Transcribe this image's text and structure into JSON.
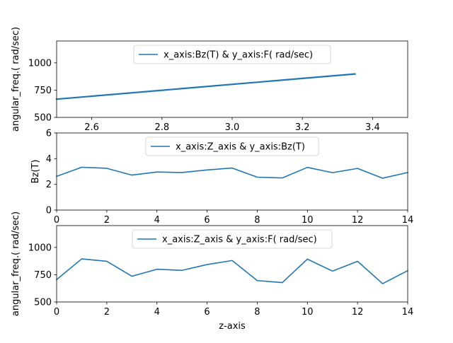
{
  "chart_data": [
    {
      "type": "line",
      "title": "",
      "xlabel": "",
      "ylabel": "angular_freq.( rad/sec)",
      "xlim": [
        2.5,
        3.5
      ],
      "ylim": [
        500,
        1200
      ],
      "xticks": [
        2.6,
        2.8,
        3.0,
        3.2,
        3.4
      ],
      "xtick_labels": [
        "2.6",
        "2.8",
        "3.0",
        "3.2",
        "3.4"
      ],
      "yticks": [
        500,
        750,
        1000
      ],
      "ytick_labels": [
        "500",
        "750",
        "1000"
      ],
      "legend_position": "upper-center",
      "series": [
        {
          "name": "x_axis:Bz(T) & y_axis:F( rad/sec)",
          "color": "#1f77b4",
          "x": [
            2.5,
            3.35
          ],
          "y": [
            667,
            898
          ]
        }
      ]
    },
    {
      "type": "line",
      "title": "",
      "xlabel": "",
      "ylabel": "Bz(T)",
      "xlim": [
        0,
        14
      ],
      "ylim": [
        0,
        6
      ],
      "xticks": [
        0,
        2,
        4,
        6,
        8,
        10,
        12,
        14
      ],
      "xtick_labels": [
        "0",
        "2",
        "4",
        "6",
        "8",
        "10",
        "12",
        "14"
      ],
      "yticks": [
        0,
        2,
        4,
        6
      ],
      "ytick_labels": [
        "0",
        "2",
        "4",
        "6"
      ],
      "legend_position": "upper-center",
      "series": [
        {
          "name": "x_axis:Z_axis & y_axis:Bz(T)",
          "color": "#1f77b4",
          "x": [
            0,
            1,
            2,
            3,
            4,
            5,
            6,
            7,
            8,
            9,
            10,
            11,
            12,
            13,
            14
          ],
          "y": [
            2.62,
            3.33,
            3.25,
            2.72,
            2.96,
            2.92,
            3.12,
            3.27,
            2.56,
            2.5,
            3.32,
            2.91,
            3.24,
            2.48,
            2.92
          ]
        }
      ]
    },
    {
      "type": "line",
      "title": "",
      "xlabel": "z-axis",
      "ylabel": "angular_freq.( rad/sec)",
      "xlim": [
        0,
        14
      ],
      "ylim": [
        500,
        1200
      ],
      "xticks": [
        0,
        2,
        4,
        6,
        8,
        10,
        12,
        14
      ],
      "xtick_labels": [
        "0",
        "2",
        "4",
        "6",
        "8",
        "10",
        "12",
        "14"
      ],
      "yticks": [
        500,
        750,
        1000
      ],
      "ytick_labels": [
        "500",
        "750",
        "1000"
      ],
      "legend_position": "upper-center",
      "series": [
        {
          "name": "x_axis:Z_axis & y_axis:F( rad/sec)",
          "color": "#1f77b4",
          "x": [
            0,
            1,
            2,
            3,
            4,
            5,
            6,
            7,
            8,
            9,
            10,
            11,
            12,
            13,
            14
          ],
          "y": [
            705,
            895,
            873,
            736,
            800,
            790,
            843,
            880,
            696,
            678,
            893,
            783,
            873,
            668,
            787
          ]
        }
      ]
    }
  ]
}
